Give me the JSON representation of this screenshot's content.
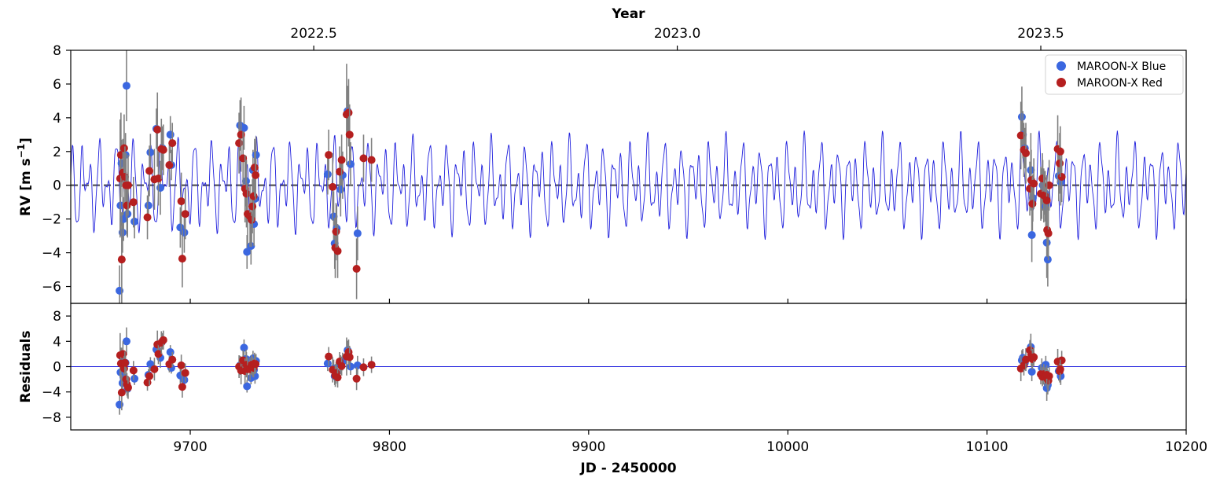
{
  "chart_data": {
    "type": "scatter",
    "xlabel": "JD - 2450000",
    "top_axis_label": "Year",
    "top_ticks": [
      {
        "label": "2022.5",
        "jd": 9762
      },
      {
        "label": "2023.0",
        "jd": 9944.5
      },
      {
        "label": "2023.5",
        "jd": 10127
      }
    ],
    "xlim": [
      9640,
      10200
    ],
    "xticks": [
      9700,
      9800,
      9900,
      10000,
      10100,
      10200
    ],
    "rv_panel": {
      "ylabel": "RV [m s",
      "ylabel_sup": "−1",
      "ylabel_close": "]",
      "ylim": [
        -7.0,
        8.0
      ],
      "yticks": [
        -6,
        -4,
        -2,
        0,
        2,
        4,
        6,
        8
      ],
      "zero_line": "dashed",
      "model": {
        "color": "#1f1fdd",
        "terms": [
          {
            "amp": 1.55,
            "period": 4.37,
            "phase": 0.3
          },
          {
            "amp": 1.15,
            "period": 7.85,
            "phase": 1.9
          },
          {
            "amp": 0.55,
            "period": 2.31,
            "phase": 4.1
          }
        ]
      }
    },
    "resid_panel": {
      "ylabel": "Residuals",
      "ylim": [
        -10,
        10
      ],
      "yticks": [
        -8,
        -4,
        0,
        4,
        8
      ],
      "zero_line": "solid"
    },
    "legend": {
      "position": "top-right"
    },
    "series": [
      {
        "name": "MAROON-X Blue",
        "color": "#3b67e0",
        "points": [
          [
            9664.5,
            -6.25,
            1.5,
            -6.0,
            1.6
          ],
          [
            9665.0,
            -1.2,
            1.5,
            -0.9,
            1.5
          ],
          [
            9665.5,
            1.3,
            1.4,
            1.6,
            1.4
          ],
          [
            9666.0,
            -2.8,
            1.2,
            -2.6,
            1.2
          ],
          [
            9666.5,
            -2.0,
            1.3,
            -1.7,
            1.3
          ],
          [
            9667.5,
            1.8,
            1.3,
            0.6,
            1.3
          ],
          [
            9668.0,
            5.9,
            2.1,
            4.0,
            2.2
          ],
          [
            9668.5,
            -1.7,
            1.4,
            -3.5,
            1.4
          ],
          [
            9672.0,
            -2.15,
            1.0,
            -1.9,
            1.0
          ],
          [
            9679.0,
            -1.2,
            0.9,
            -1.3,
            0.9
          ],
          [
            9680.0,
            1.95,
            1.1,
            0.4,
            1.1
          ],
          [
            9683.0,
            3.35,
            1.2,
            2.7,
            1.2
          ],
          [
            9685.0,
            -0.15,
            1.6,
            1.4,
            1.6
          ],
          [
            9686.0,
            2.2,
            1.3,
            4.0,
            1.3
          ],
          [
            9690.0,
            3.0,
            1.1,
            2.3,
            1.1
          ],
          [
            9690.5,
            1.2,
            0.9,
            -0.2,
            0.9
          ],
          [
            9695.0,
            -2.5,
            1.2,
            -1.4,
            1.3
          ],
          [
            9697.0,
            -2.8,
            1.2,
            -2.1,
            1.2
          ],
          [
            9725.0,
            3.55,
            1.5,
            0.2,
            1.5
          ],
          [
            9727.0,
            3.4,
            1.3,
            3.0,
            1.3
          ],
          [
            9728.0,
            0.25,
            1.5,
            1.2,
            1.5
          ],
          [
            9728.5,
            -3.95,
            1.0,
            -3.1,
            1.0
          ],
          [
            9730.5,
            -3.6,
            1.1,
            -1.8,
            1.0
          ],
          [
            9731.5,
            0.9,
            1.2,
            1.3,
            1.2
          ],
          [
            9732.0,
            -2.3,
            1.3,
            -0.5,
            1.2
          ],
          [
            9732.5,
            -0.8,
            1.2,
            -1.5,
            1.2
          ],
          [
            9733.0,
            1.8,
            1.1,
            0.9,
            1.1
          ],
          [
            9769.0,
            0.65,
            1.2,
            0.5,
            1.2
          ],
          [
            9772.0,
            -1.85,
            1.5,
            -0.3,
            1.4
          ],
          [
            9772.5,
            -3.45,
            1.5,
            -1.5,
            1.4
          ],
          [
            9773.5,
            -2.55,
            1.4,
            -0.9,
            1.4
          ],
          [
            9775.5,
            -0.25,
            1.6,
            0.3,
            1.5
          ],
          [
            9776.5,
            0.6,
            1.4,
            0.8,
            1.4
          ],
          [
            9779.0,
            4.4,
            1.5,
            2.6,
            1.5
          ],
          [
            9780.5,
            1.25,
            1.3,
            0.0,
            1.3
          ],
          [
            9784.0,
            -2.85,
            1.6,
            0.2,
            1.5
          ],
          [
            10117.5,
            4.05,
            1.8,
            1.0,
            1.6
          ],
          [
            10118.0,
            3.0,
            1.4,
            1.4,
            1.4
          ],
          [
            10119.0,
            2.2,
            1.2,
            0.6,
            1.2
          ],
          [
            10122.0,
            0.9,
            2.2,
            3.1,
            2.1
          ],
          [
            10122.5,
            -2.95,
            1.6,
            -0.8,
            1.5
          ],
          [
            10123.0,
            -0.75,
            1.4,
            1.6,
            1.4
          ],
          [
            10127.5,
            -0.5,
            1.5,
            -0.2,
            1.5
          ],
          [
            10128.0,
            0.0,
            1.5,
            -1.4,
            1.5
          ],
          [
            10129.0,
            -0.45,
            1.3,
            -0.9,
            1.3
          ],
          [
            10129.5,
            -1.25,
            1.4,
            0.3,
            1.4
          ],
          [
            10130.0,
            -3.4,
            2.1,
            -3.4,
            2.0
          ],
          [
            10130.5,
            -4.4,
            1.6,
            -2.9,
            1.5
          ],
          [
            10136.0,
            0.55,
            1.5,
            -0.7,
            1.5
          ],
          [
            10137.0,
            0.2,
            1.4,
            -1.5,
            1.4
          ]
        ]
      },
      {
        "name": "MAROON-X Red",
        "color": "#b51f1f",
        "points": [
          [
            9664.8,
            0.4,
            3.5,
            1.8,
            3.5
          ],
          [
            9665.2,
            1.8,
            2.5,
            0.5,
            2.5
          ],
          [
            9665.6,
            -4.4,
            2.8,
            -4.1,
            2.8
          ],
          [
            9666.2,
            0.75,
            2.0,
            2.0,
            2.0
          ],
          [
            9666.8,
            2.2,
            2.0,
            -0.3,
            2.0
          ],
          [
            9667.2,
            0.5,
            1.8,
            0.6,
            1.8
          ],
          [
            9667.8,
            0.0,
            1.9,
            -2.0,
            1.9
          ],
          [
            9668.2,
            -1.2,
            1.8,
            -2.8,
            1.8
          ],
          [
            9668.8,
            0.0,
            1.8,
            -3.3,
            1.8
          ],
          [
            9671.5,
            -1.0,
            1.5,
            -0.6,
            1.5
          ],
          [
            9678.5,
            -1.9,
            1.3,
            -2.5,
            1.3
          ],
          [
            9679.5,
            0.85,
            1.5,
            -1.5,
            1.5
          ],
          [
            9682.0,
            0.35,
            1.8,
            -0.4,
            1.8
          ],
          [
            9683.5,
            3.3,
            2.2,
            3.5,
            2.2
          ],
          [
            9684.0,
            0.4,
            1.6,
            2.0,
            1.6
          ],
          [
            9685.5,
            2.15,
            1.8,
            3.8,
            1.8
          ],
          [
            9686.5,
            2.1,
            1.5,
            4.2,
            1.5
          ],
          [
            9689.5,
            1.2,
            1.3,
            0.4,
            1.3
          ],
          [
            9691.0,
            2.5,
            1.2,
            1.1,
            1.2
          ],
          [
            9695.5,
            -0.95,
            1.7,
            0.2,
            1.7
          ],
          [
            9696.0,
            -4.35,
            1.7,
            -3.2,
            1.7
          ],
          [
            9697.5,
            -1.7,
            1.5,
            -1.0,
            1.5
          ],
          [
            9724.5,
            2.5,
            1.8,
            0.0,
            1.8
          ],
          [
            9725.5,
            3.0,
            2.2,
            -0.6,
            2.2
          ],
          [
            9726.5,
            1.6,
            1.6,
            1.0,
            1.6
          ],
          [
            9727.5,
            -0.2,
            2.0,
            -0.7,
            2.0
          ],
          [
            9728.2,
            -0.5,
            2.0,
            0.3,
            2.0
          ],
          [
            9728.8,
            -1.7,
            1.8,
            -0.4,
            1.8
          ],
          [
            9730.0,
            -1.85,
            1.8,
            -0.4,
            1.8
          ],
          [
            9730.8,
            -2.05,
            1.6,
            0.3,
            1.6
          ],
          [
            9731.2,
            -1.25,
            1.6,
            0.0,
            1.6
          ],
          [
            9731.8,
            -0.65,
            1.5,
            -0.2,
            1.5
          ],
          [
            9732.3,
            1.05,
            1.7,
            0.5,
            1.7
          ],
          [
            9732.8,
            0.6,
            1.5,
            0.4,
            1.5
          ],
          [
            9769.5,
            1.8,
            1.5,
            1.6,
            1.5
          ],
          [
            9771.5,
            -0.1,
            2.0,
            -0.5,
            2.0
          ],
          [
            9772.8,
            -3.7,
            1.8,
            -1.4,
            1.8
          ],
          [
            9773.2,
            -2.75,
            1.7,
            -1.0,
            1.7
          ],
          [
            9774.0,
            -3.9,
            1.6,
            -1.7,
            1.6
          ],
          [
            9775.0,
            0.8,
            1.5,
            0.8,
            1.5
          ],
          [
            9776.0,
            1.5,
            1.5,
            0.1,
            1.5
          ],
          [
            9778.5,
            4.2,
            3.0,
            1.6,
            3.0
          ],
          [
            9779.5,
            4.3,
            2.0,
            2.3,
            2.0
          ],
          [
            9780.0,
            3.0,
            1.8,
            1.5,
            1.8
          ],
          [
            9783.5,
            -4.95,
            1.8,
            -1.9,
            1.8
          ],
          [
            9787.0,
            1.6,
            1.4,
            -0.1,
            1.4
          ],
          [
            9791.0,
            1.5,
            1.3,
            0.3,
            1.3
          ],
          [
            10117.0,
            2.95,
            2.0,
            -0.3,
            2.0
          ],
          [
            10118.5,
            2.1,
            1.6,
            0.2,
            1.6
          ],
          [
            10119.5,
            1.9,
            1.8,
            1.1,
            1.8
          ],
          [
            10121.5,
            -0.2,
            1.6,
            2.6,
            1.6
          ],
          [
            10122.2,
            0.3,
            1.8,
            1.9,
            1.8
          ],
          [
            10122.8,
            -1.1,
            1.6,
            1.2,
            1.6
          ],
          [
            10123.5,
            0.1,
            1.5,
            1.5,
            1.5
          ],
          [
            10127.0,
            -0.5,
            1.6,
            -1.2,
            1.6
          ],
          [
            10127.8,
            0.4,
            1.5,
            -1.6,
            1.5
          ],
          [
            10128.5,
            -0.6,
            1.6,
            -1.2,
            1.6
          ],
          [
            10129.2,
            -0.65,
            1.5,
            -1.6,
            1.5
          ],
          [
            10130.2,
            -2.65,
            1.6,
            -1.9,
            1.6
          ],
          [
            10130.8,
            -2.85,
            1.6,
            -2.2,
            1.6
          ],
          [
            10131.2,
            0.0,
            1.5,
            -1.5,
            1.5
          ],
          [
            10135.5,
            2.15,
            2.0,
            0.8,
            2.0
          ],
          [
            10136.5,
            1.3,
            1.8,
            -0.7,
            1.8
          ],
          [
            10137.5,
            0.5,
            1.5,
            1.0,
            1.5
          ],
          [
            10136.8,
            2.0,
            1.5,
            -0.4,
            1.5
          ],
          [
            10130.0,
            -0.9,
            1.5,
            -1.3,
            1.5
          ]
        ]
      }
    ]
  }
}
